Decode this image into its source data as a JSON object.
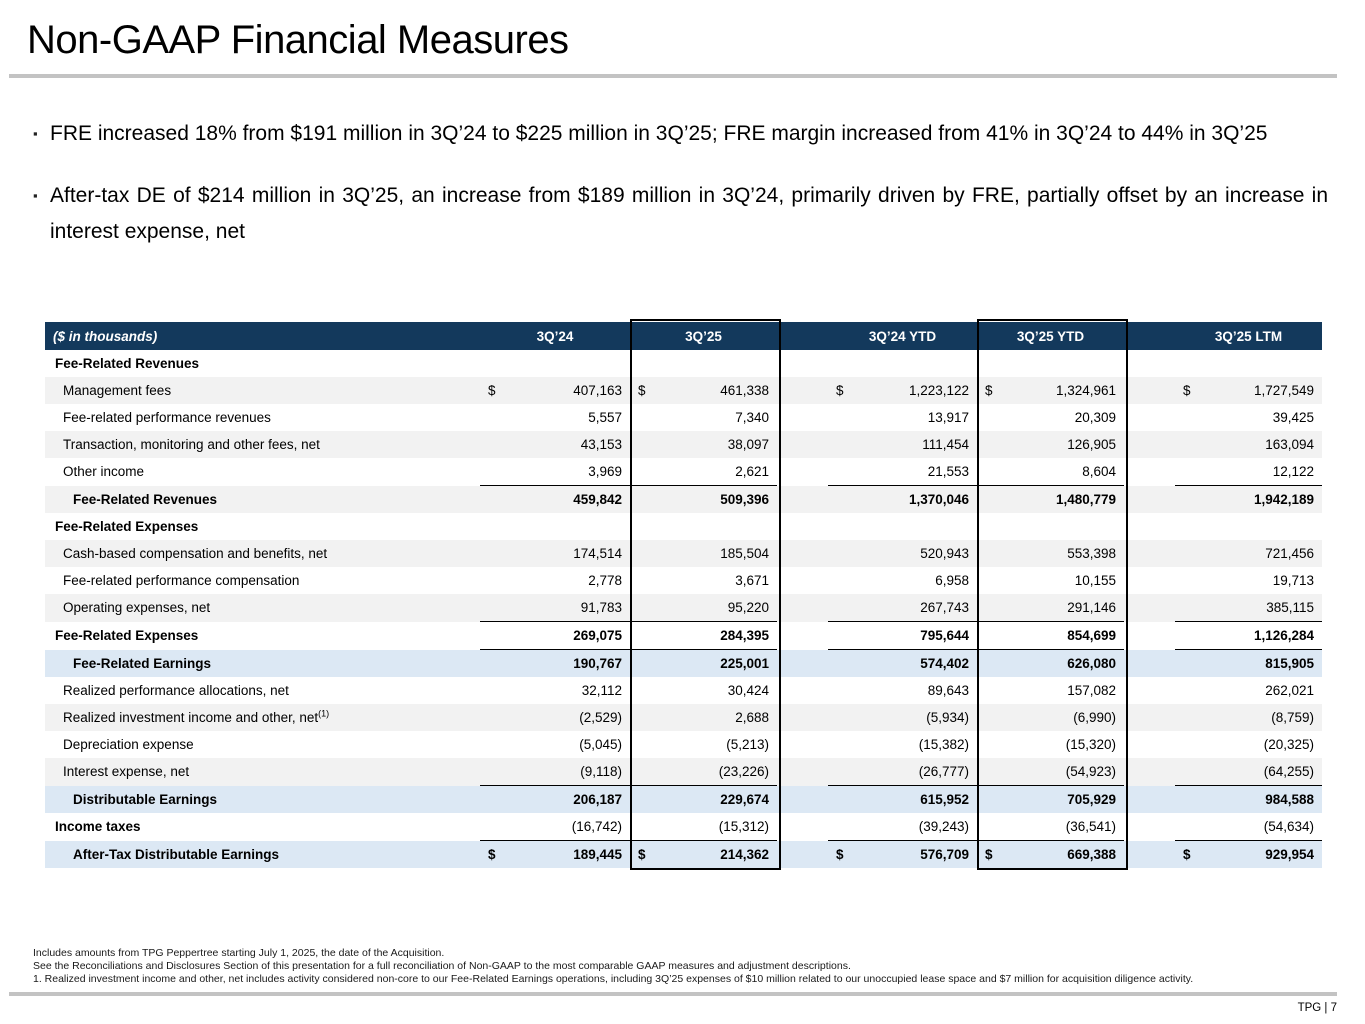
{
  "title": "Non-GAAP Financial Measures",
  "bullets": [
    "FRE increased 18% from $191 million in 3Q’24 to $225 million in 3Q’25; FRE margin increased from 41% in 3Q’24 to 44% in 3Q’25",
    "After-tax DE of $214 million in 3Q’25, an increase from $189 million in 3Q’24, primarily driven by FRE, partially offset by an increase in interest expense, net"
  ],
  "table": {
    "unit_label": "($ in thousands)",
    "currency_symbol": "$",
    "columns": [
      "3Q’24",
      "3Q’25",
      "3Q’24 YTD",
      "3Q’25 YTD",
      "3Q’25 LTM"
    ],
    "highlighted_columns": [
      "3Q’25",
      "3Q’25 YTD"
    ],
    "rows": [
      {
        "label": "Fee-Related Revenues",
        "bg": "w",
        "indent": 10,
        "lb": true,
        "vb": false,
        "line": false,
        "dollar": false,
        "values": [
          "",
          "",
          "",
          "",
          ""
        ]
      },
      {
        "label": "Management fees",
        "bg": "g",
        "indent": 18,
        "lb": false,
        "vb": false,
        "line": false,
        "dollar": true,
        "values": [
          "407,163",
          "461,338",
          "1,223,122",
          "1,324,961",
          "1,727,549"
        ]
      },
      {
        "label": "Fee-related performance revenues",
        "bg": "w",
        "indent": 18,
        "lb": false,
        "vb": false,
        "line": false,
        "dollar": false,
        "values": [
          "5,557",
          "7,340",
          "13,917",
          "20,309",
          "39,425"
        ]
      },
      {
        "label": "Transaction, monitoring and other fees, net",
        "bg": "g",
        "indent": 18,
        "lb": false,
        "vb": false,
        "line": false,
        "dollar": false,
        "values": [
          "43,153",
          "38,097",
          "111,454",
          "126,905",
          "163,094"
        ]
      },
      {
        "label": "Other income",
        "bg": "w",
        "indent": 18,
        "lb": false,
        "vb": false,
        "line": false,
        "dollar": false,
        "values": [
          "3,969",
          "2,621",
          "21,553",
          "8,604",
          "12,122"
        ]
      },
      {
        "label": "Fee-Related Revenues",
        "bg": "g",
        "indent": 28,
        "lb": true,
        "vb": true,
        "line": true,
        "dollar": false,
        "values": [
          "459,842",
          "509,396",
          "1,370,046",
          "1,480,779",
          "1,942,189"
        ]
      },
      {
        "label": "Fee-Related Expenses",
        "bg": "w",
        "indent": 10,
        "lb": true,
        "vb": false,
        "line": false,
        "dollar": false,
        "values": [
          "",
          "",
          "",
          "",
          ""
        ]
      },
      {
        "label": "Cash-based compensation and benefits, net",
        "bg": "g",
        "indent": 18,
        "lb": false,
        "vb": false,
        "line": false,
        "dollar": false,
        "values": [
          "174,514",
          "185,504",
          "520,943",
          "553,398",
          "721,456"
        ]
      },
      {
        "label": "Fee-related performance compensation",
        "bg": "w",
        "indent": 18,
        "lb": false,
        "vb": false,
        "line": false,
        "dollar": false,
        "values": [
          "2,778",
          "3,671",
          "6,958",
          "10,155",
          "19,713"
        ]
      },
      {
        "label": "Operating expenses, net",
        "bg": "g",
        "indent": 18,
        "lb": false,
        "vb": false,
        "line": false,
        "dollar": false,
        "values": [
          "91,783",
          "95,220",
          "267,743",
          "291,146",
          "385,115"
        ]
      },
      {
        "label": "Fee-Related Expenses",
        "bg": "w",
        "indent": 10,
        "lb": true,
        "vb": true,
        "line": true,
        "dollar": false,
        "values": [
          "269,075",
          "284,395",
          "795,644",
          "854,699",
          "1,126,284"
        ]
      },
      {
        "label": "Fee-Related Earnings",
        "bg": "b",
        "indent": 28,
        "lb": true,
        "vb": true,
        "line": true,
        "dollar": false,
        "values": [
          "190,767",
          "225,001",
          "574,402",
          "626,080",
          "815,905"
        ]
      },
      {
        "label": "Realized performance allocations, net",
        "bg": "w",
        "indent": 18,
        "lb": false,
        "vb": false,
        "line": false,
        "dollar": false,
        "values": [
          "32,112",
          "30,424",
          "89,643",
          "157,082",
          "262,021"
        ]
      },
      {
        "label": "Realized investment income and other, net",
        "sup": "(1)",
        "bg": "g",
        "indent": 18,
        "lb": false,
        "vb": false,
        "line": false,
        "dollar": false,
        "values": [
          "(2,529)",
          "2,688",
          "(5,934)",
          "(6,990)",
          "(8,759)"
        ]
      },
      {
        "label": "Depreciation expense",
        "bg": "w",
        "indent": 18,
        "lb": false,
        "vb": false,
        "line": false,
        "dollar": false,
        "values": [
          "(5,045)",
          "(5,213)",
          "(15,382)",
          "(15,320)",
          "(20,325)"
        ]
      },
      {
        "label": "Interest expense, net",
        "bg": "g",
        "indent": 18,
        "lb": false,
        "vb": false,
        "line": false,
        "dollar": false,
        "values": [
          "(9,118)",
          "(23,226)",
          "(26,777)",
          "(54,923)",
          "(64,255)"
        ]
      },
      {
        "label": "Distributable Earnings",
        "bg": "b",
        "indent": 28,
        "lb": true,
        "vb": true,
        "line": true,
        "dollar": false,
        "values": [
          "206,187",
          "229,674",
          "615,952",
          "705,929",
          "984,588"
        ]
      },
      {
        "label": "Income taxes",
        "bg": "w",
        "indent": 10,
        "lb": true,
        "vb": false,
        "line": false,
        "dollar": false,
        "values": [
          "(16,742)",
          "(15,312)",
          "(39,243)",
          "(36,541)",
          "(54,634)"
        ]
      },
      {
        "label": "After-Tax Distributable Earnings",
        "bg": "b",
        "indent": 28,
        "lb": true,
        "vb": true,
        "line": true,
        "dollar": true,
        "values": [
          "189,445",
          "214,362",
          "576,709",
          "669,388",
          "929,954"
        ]
      }
    ]
  },
  "footnotes": [
    "Includes amounts from TPG Peppertree starting July 1, 2025, the date of the Acquisition.",
    "See the Reconciliations and Disclosures Section of this presentation for a full reconciliation of Non-GAAP to the most comparable GAAP measures and adjustment descriptions.",
    "1. Realized investment income and other, net includes activity considered non-core to our Fee-Related Earnings operations, including 3Q’25 expenses of $10 million related to our unoccupied lease space and $7 million for acquisition diligence activity."
  ],
  "page_label": "TPG | 7"
}
